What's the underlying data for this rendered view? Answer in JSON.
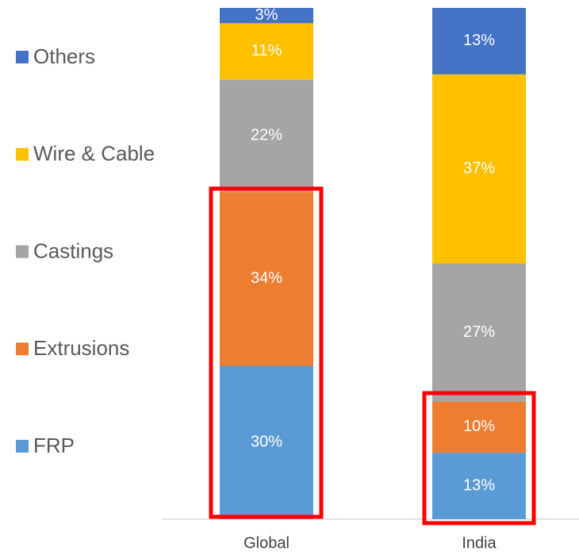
{
  "chart_data": {
    "type": "stacked_bar",
    "categories": [
      "Global",
      "India"
    ],
    "series": [
      {
        "name": "FRP",
        "color": "#5b9bd5",
        "values": [
          30,
          13
        ],
        "value_labels": [
          "30%",
          "13%"
        ]
      },
      {
        "name": "Extrusions",
        "color": "#ed7d31",
        "values": [
          34,
          10
        ],
        "value_labels": [
          "34%",
          "10%"
        ]
      },
      {
        "name": "Castings",
        "color": "#a5a5a5",
        "values": [
          22,
          27
        ],
        "value_labels": [
          "22%",
          "27%"
        ]
      },
      {
        "name": "Wire & Cable",
        "color": "#ffc000",
        "values": [
          11,
          37
        ],
        "value_labels": [
          "11%",
          "37%"
        ]
      },
      {
        "name": "Others",
        "color": "#4472c4",
        "values": [
          3,
          13
        ],
        "value_labels": [
          "3%",
          "13%"
        ]
      }
    ],
    "ylim": [
      0,
      100
    ],
    "legend": "left"
  }
}
